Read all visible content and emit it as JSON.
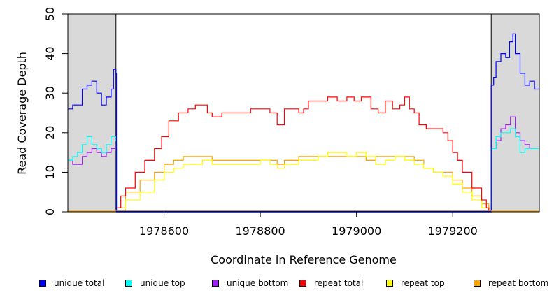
{
  "chart_data": {
    "type": "line",
    "xlabel": "Coordinate in Reference Genome",
    "ylabel": "Read Coverage Depth",
    "xlim": [
      1978400,
      1979380
    ],
    "ylim": [
      0,
      50
    ],
    "xticks": [
      1978600,
      1978800,
      1979000,
      1979200
    ],
    "xtick_labels": [
      "1978600",
      "1978800",
      "1979000",
      "1979200"
    ],
    "yticks": [
      0,
      10,
      20,
      30,
      40,
      50
    ],
    "ytick_labels": [
      "0",
      "10",
      "20",
      "30",
      "40",
      "50"
    ],
    "grid": false,
    "legend_position": "bottom",
    "shaded_regions": [
      [
        1978400,
        1978500
      ],
      [
        1979280,
        1979380
      ]
    ],
    "shade_color": "#d9d9d9",
    "series": [
      {
        "name": "unique total",
        "color": "#0000ff",
        "x": [
          1978400,
          1978410,
          1978420,
          1978430,
          1978440,
          1978450,
          1978460,
          1978470,
          1978480,
          1978490,
          1978495,
          1978500,
          1978501,
          1979279,
          1979280,
          1979285,
          1979290,
          1979300,
          1979310,
          1979318,
          1979325,
          1979330,
          1979340,
          1979350,
          1979360,
          1979370,
          1979380
        ],
        "y": [
          26,
          27,
          27,
          31,
          32,
          33,
          30,
          27,
          29,
          31,
          36,
          35,
          0,
          0,
          32,
          34,
          38,
          40,
          39,
          43,
          45,
          40,
          35,
          32,
          33,
          31,
          31
        ]
      },
      {
        "name": "unique top",
        "color": "#00ffff",
        "x": [
          1978400,
          1978410,
          1978420,
          1978430,
          1978440,
          1978450,
          1978460,
          1978470,
          1978480,
          1978490,
          1978500,
          1978501,
          1979279,
          1979280,
          1979290,
          1979300,
          1979310,
          1979320,
          1979330,
          1979340,
          1979350,
          1979360,
          1979370,
          1979380
        ],
        "y": [
          13,
          14,
          15,
          17,
          19,
          17,
          16,
          15,
          17,
          19,
          18,
          0,
          0,
          16,
          19,
          20,
          20,
          21,
          19,
          15,
          16,
          16,
          16,
          16
        ]
      },
      {
        "name": "unique bottom",
        "color": "#a020f0",
        "x": [
          1978400,
          1978410,
          1978420,
          1978430,
          1978440,
          1978450,
          1978460,
          1978470,
          1978480,
          1978490,
          1978500,
          1978501,
          1979279,
          1979280,
          1979290,
          1979300,
          1979310,
          1979320,
          1979330,
          1979340,
          1979350,
          1979360,
          1979370,
          1979380
        ],
        "y": [
          13,
          12,
          12,
          14,
          15,
          16,
          15,
          14,
          15,
          16,
          17,
          0,
          0,
          16,
          18,
          21,
          22,
          24,
          20,
          18,
          17,
          16,
          16,
          16
        ]
      },
      {
        "name": "repeat total",
        "color": "#ff0000",
        "x": [
          1978501,
          1978510,
          1978520,
          1978540,
          1978560,
          1978580,
          1978595,
          1978610,
          1978630,
          1978650,
          1978665,
          1978680,
          1978690,
          1978700,
          1978720,
          1978740,
          1978760,
          1978780,
          1978800,
          1978820,
          1978835,
          1978850,
          1978870,
          1978880,
          1978890,
          1978900,
          1978920,
          1978940,
          1978960,
          1978980,
          1978995,
          1979010,
          1979030,
          1979045,
          1979060,
          1979075,
          1979090,
          1979100,
          1979110,
          1979120,
          1979130,
          1979145,
          1979160,
          1979180,
          1979190,
          1979200,
          1979210,
          1979220,
          1979240,
          1979260,
          1979270,
          1979275
        ],
        "y": [
          1,
          4,
          6,
          10,
          13,
          16,
          19,
          23,
          25,
          26,
          27,
          27,
          25,
          24,
          25,
          25,
          25,
          26,
          26,
          25,
          22,
          26,
          26,
          25,
          26,
          28,
          28,
          29,
          28,
          29,
          28,
          29,
          26,
          25,
          28,
          26,
          27,
          29,
          26,
          25,
          22,
          21,
          21,
          20,
          18,
          15,
          13,
          10,
          6,
          3,
          1,
          0
        ]
      },
      {
        "name": "repeat top",
        "color": "#ffff00",
        "x": [
          1978501,
          1978520,
          1978550,
          1978580,
          1978600,
          1978620,
          1978640,
          1978660,
          1978680,
          1978700,
          1978740,
          1978780,
          1978800,
          1978820,
          1978835,
          1978850,
          1978880,
          1978900,
          1978920,
          1978940,
          1978960,
          1978980,
          1979000,
          1979020,
          1979040,
          1979060,
          1979080,
          1979100,
          1979120,
          1979140,
          1979160,
          1979180,
          1979200,
          1979220,
          1979240,
          1979260,
          1979275
        ],
        "y": [
          0,
          3,
          5,
          8,
          10,
          11,
          12,
          12,
          13,
          12,
          12,
          12,
          13,
          12,
          11,
          12,
          13,
          13,
          14,
          15,
          15,
          14,
          15,
          14,
          12,
          13,
          14,
          13,
          12,
          11,
          10,
          9,
          7,
          5,
          3,
          1,
          0
        ]
      },
      {
        "name": "repeat bottom",
        "color": "#ffa500",
        "x": [
          1978501,
          1978520,
          1978550,
          1978580,
          1978600,
          1978620,
          1978640,
          1978660,
          1978680,
          1978700,
          1978740,
          1978780,
          1978800,
          1978820,
          1978835,
          1978850,
          1978880,
          1978900,
          1978920,
          1978940,
          1978960,
          1978980,
          1979000,
          1979020,
          1979040,
          1979060,
          1979080,
          1979100,
          1979120,
          1979140,
          1979160,
          1979180,
          1979200,
          1979220,
          1979240,
          1979260,
          1979275
        ],
        "y": [
          1,
          5,
          8,
          10,
          12,
          13,
          14,
          14,
          14,
          13,
          13,
          13,
          13,
          13,
          12,
          13,
          14,
          14,
          14,
          14,
          14,
          14,
          14,
          13,
          14,
          14,
          14,
          14,
          13,
          11,
          10,
          10,
          8,
          6,
          4,
          2,
          0
        ]
      }
    ]
  },
  "legend": [
    {
      "label": "unique total",
      "color": "#0000ff"
    },
    {
      "label": "unique top",
      "color": "#00ffff"
    },
    {
      "label": "unique bottom",
      "color": "#a020f0"
    },
    {
      "label": "repeat total",
      "color": "#ff0000"
    },
    {
      "label": "repeat top",
      "color": "#ffff00"
    },
    {
      "label": "repeat bottom",
      "color": "#ffa500"
    }
  ]
}
